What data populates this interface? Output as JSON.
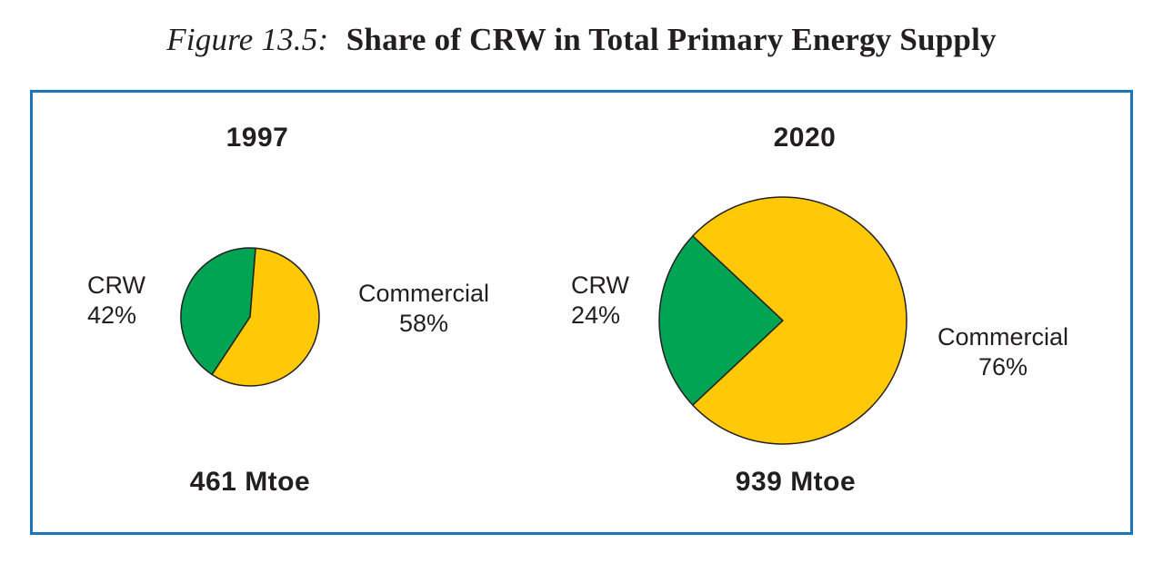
{
  "figure": {
    "title_prefix": "Figure 13.5:",
    "title_main": "Share of CRW in Total Primary Energy Supply"
  },
  "colors": {
    "crw_green": "#00A452",
    "commercial_yellow": "#FFC907",
    "frame_blue": "#1B75BC",
    "pie_outline": "#231F20",
    "text": "#231F20"
  },
  "chart_data": [
    {
      "type": "pie",
      "year": "1997",
      "total_label": "461 Mtoe",
      "total_value": 461,
      "units": "Mtoe",
      "slices": [
        {
          "label": "CRW",
          "pct_label": "42%",
          "value": 42,
          "color_key": "crw_green",
          "label_side": "left"
        },
        {
          "label": "Commercial",
          "pct_label": "58%",
          "value": 58,
          "color_key": "commercial_yellow",
          "label_side": "right"
        }
      ],
      "crw_mid_angle_deg": 289,
      "radius_px": 76
    },
    {
      "type": "pie",
      "year": "2020",
      "total_label": "939 Mtoe",
      "total_value": 939,
      "units": "Mtoe",
      "slices": [
        {
          "label": "CRW",
          "pct_label": "24%",
          "value": 24,
          "color_key": "crw_green",
          "label_side": "left"
        },
        {
          "label": "Commercial",
          "pct_label": "76%",
          "value": 76,
          "color_key": "commercial_yellow",
          "label_side": "right"
        }
      ],
      "crw_mid_angle_deg": 270,
      "radius_px": 136
    }
  ]
}
